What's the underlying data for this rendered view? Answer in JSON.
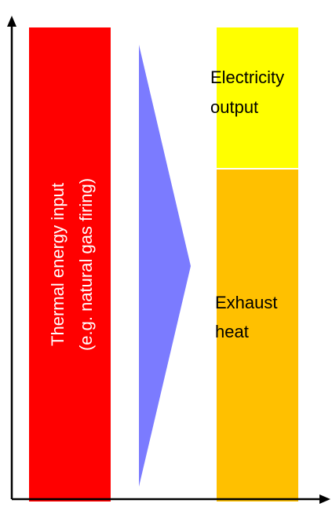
{
  "input_bar": {
    "line1": "Thermal energy input",
    "line2": "(e.g. natural gas firing)",
    "color": "#ff0000"
  },
  "flow_arrow": {
    "color": "#7b7bff"
  },
  "output_bar": {
    "electricity": {
      "line1": "Electricity",
      "line2": "output",
      "color": "#ffff00"
    },
    "exhaust": {
      "line1": "Exhaust",
      "line2": "heat",
      "color": "#ffc000"
    }
  },
  "axes": {
    "color": "#000000"
  }
}
